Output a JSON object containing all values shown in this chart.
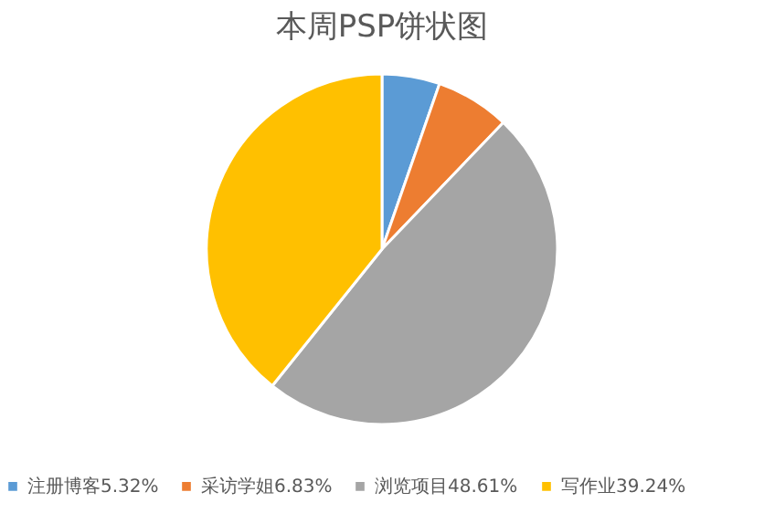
{
  "chart_data": {
    "type": "pie",
    "title": "本周PSP饼状图",
    "categories": [
      "注册博客5.32%",
      "采访学姐6.83%",
      "浏览项目48.61%",
      "写作业39.24%"
    ],
    "values": [
      5.32,
      6.83,
      48.61,
      39.24
    ],
    "colors": [
      "#5b9bd5",
      "#ed7d31",
      "#a5a5a5",
      "#ffc000"
    ],
    "legend": "bottom"
  }
}
